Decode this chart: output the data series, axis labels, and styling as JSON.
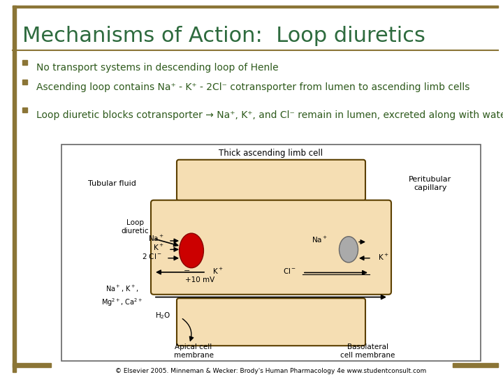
{
  "title": "Mechanisms of Action:  Loop diuretics",
  "title_color": "#2E6B3E",
  "title_fontsize": 22,
  "bg_color": "#FFFFFF",
  "bullet_color": "#8B7536",
  "bullet_text_color": "#2E5A1C",
  "bullets": [
    "No transport systems in descending loop of Henle",
    "Ascending loop contains Na⁺ - K⁺ - 2Cl⁻ cotransporter from lumen to ascending limb cells",
    "Loop diuretic blocks cotransporter → Na⁺, K⁺, and Cl⁻ remain in lumen, excreted along with water"
  ],
  "border_color": "#8B7536",
  "cell_fill": "#F5DEB3",
  "cell_stroke": "#5C4000",
  "red_ellipse": "#CC0000",
  "gray_ellipse": "#AAAAAA",
  "diagram_bg": "#FFFFFF",
  "caption": "© Elsevier 2005. Minneman & Wecker: Brody's Human Pharmacology 4e www.studentconsult.com",
  "caption_fontsize": 6.5
}
